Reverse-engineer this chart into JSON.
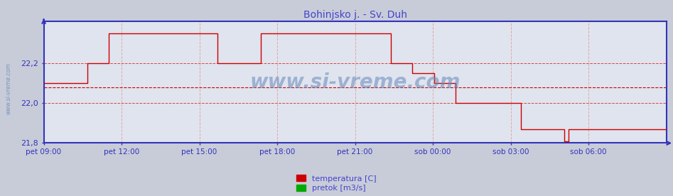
{
  "title": "Bohinjsko j. - Sv. Duh",
  "title_color": "#4444cc",
  "bg_color": "#c8ccd8",
  "plot_bg_color": "#e0e4ee",
  "grid_color_h": "#dd4444",
  "grid_color_v": "#ddaaaa",
  "line_color": "#cc0000",
  "avg_line_color": "#cc0000",
  "avg_line_value": 22.08,
  "ylim": [
    21.8,
    22.41
  ],
  "yticks": [
    21.8,
    22.0,
    22.2
  ],
  "ytick_labels": [
    "21,8",
    "22,0",
    "22,2"
  ],
  "ylabel_color": "#3333bb",
  "xlabel_color": "#3333bb",
  "axis_color": "#3333bb",
  "watermark_text": "www.si-vreme.com",
  "watermark_color": "#6688bb",
  "legend_temp_label": "temperatura [C]",
  "legend_flow_label": "pretok [m3/s]",
  "legend_temp_color": "#cc0000",
  "legend_flow_color": "#00aa00",
  "xtick_labels": [
    "pet 09:00",
    "pet 12:00",
    "pet 15:00",
    "pet 18:00",
    "pet 21:00",
    "sob 00:00",
    "sob 03:00",
    "sob 06:00"
  ],
  "temp_data": [
    22.1,
    22.1,
    22.1,
    22.1,
    22.1,
    22.1,
    22.1,
    22.1,
    22.1,
    22.1,
    22.1,
    22.1,
    22.1,
    22.1,
    22.1,
    22.1,
    22.1,
    22.1,
    22.1,
    22.1,
    22.2,
    22.2,
    22.2,
    22.2,
    22.2,
    22.2,
    22.2,
    22.2,
    22.2,
    22.2,
    22.35,
    22.35,
    22.35,
    22.35,
    22.35,
    22.35,
    22.35,
    22.35,
    22.35,
    22.35,
    22.35,
    22.35,
    22.35,
    22.35,
    22.35,
    22.35,
    22.35,
    22.35,
    22.35,
    22.35,
    22.35,
    22.35,
    22.35,
    22.35,
    22.35,
    22.35,
    22.35,
    22.35,
    22.35,
    22.35,
    22.35,
    22.35,
    22.35,
    22.35,
    22.35,
    22.35,
    22.35,
    22.35,
    22.35,
    22.35,
    22.35,
    22.35,
    22.35,
    22.35,
    22.35,
    22.35,
    22.35,
    22.35,
    22.35,
    22.35,
    22.2,
    22.2,
    22.2,
    22.2,
    22.2,
    22.2,
    22.2,
    22.2,
    22.2,
    22.2,
    22.2,
    22.2,
    22.2,
    22.2,
    22.2,
    22.2,
    22.2,
    22.2,
    22.2,
    22.2,
    22.35,
    22.35,
    22.35,
    22.35,
    22.35,
    22.35,
    22.35,
    22.35,
    22.35,
    22.35,
    22.35,
    22.35,
    22.35,
    22.35,
    22.35,
    22.35,
    22.35,
    22.35,
    22.35,
    22.35,
    22.35,
    22.35,
    22.35,
    22.35,
    22.35,
    22.35,
    22.35,
    22.35,
    22.35,
    22.35,
    22.35,
    22.35,
    22.35,
    22.35,
    22.35,
    22.35,
    22.35,
    22.35,
    22.35,
    22.35,
    22.35,
    22.35,
    22.35,
    22.35,
    22.35,
    22.35,
    22.35,
    22.35,
    22.35,
    22.35,
    22.35,
    22.35,
    22.35,
    22.35,
    22.35,
    22.35,
    22.35,
    22.35,
    22.35,
    22.35,
    22.2,
    22.2,
    22.2,
    22.2,
    22.2,
    22.2,
    22.2,
    22.2,
    22.2,
    22.2,
    22.15,
    22.15,
    22.15,
    22.15,
    22.15,
    22.15,
    22.15,
    22.15,
    22.15,
    22.15,
    22.1,
    22.1,
    22.1,
    22.1,
    22.1,
    22.1,
    22.1,
    22.1,
    22.1,
    22.1,
    22.0,
    22.0,
    22.0,
    22.0,
    22.0,
    22.0,
    22.0,
    22.0,
    22.0,
    22.0,
    22.0,
    22.0,
    22.0,
    22.0,
    22.0,
    22.0,
    22.0,
    22.0,
    22.0,
    22.0,
    22.0,
    22.0,
    22.0,
    22.0,
    22.0,
    22.0,
    22.0,
    22.0,
    22.0,
    22.0,
    21.87,
    21.87,
    21.87,
    21.87,
    21.87,
    21.87,
    21.87,
    21.87,
    21.87,
    21.87,
    21.87,
    21.87,
    21.87,
    21.87,
    21.87,
    21.87,
    21.87,
    21.87,
    21.87,
    21.87,
    21.81,
    21.81,
    21.87,
    21.87,
    21.87,
    21.87,
    21.87,
    21.87,
    21.87,
    21.87,
    21.87,
    21.87,
    21.87,
    21.87,
    21.87,
    21.87,
    21.87,
    21.87,
    21.87,
    21.87,
    21.87,
    21.87,
    21.87,
    21.87,
    21.87,
    21.87,
    21.87,
    21.87,
    21.87,
    21.87,
    21.87,
    21.87,
    21.87,
    21.87,
    21.87,
    21.87,
    21.87,
    21.87,
    21.87,
    21.87,
    21.87,
    21.87,
    21.87,
    21.87,
    21.87,
    21.87,
    21.87,
    21.87
  ]
}
